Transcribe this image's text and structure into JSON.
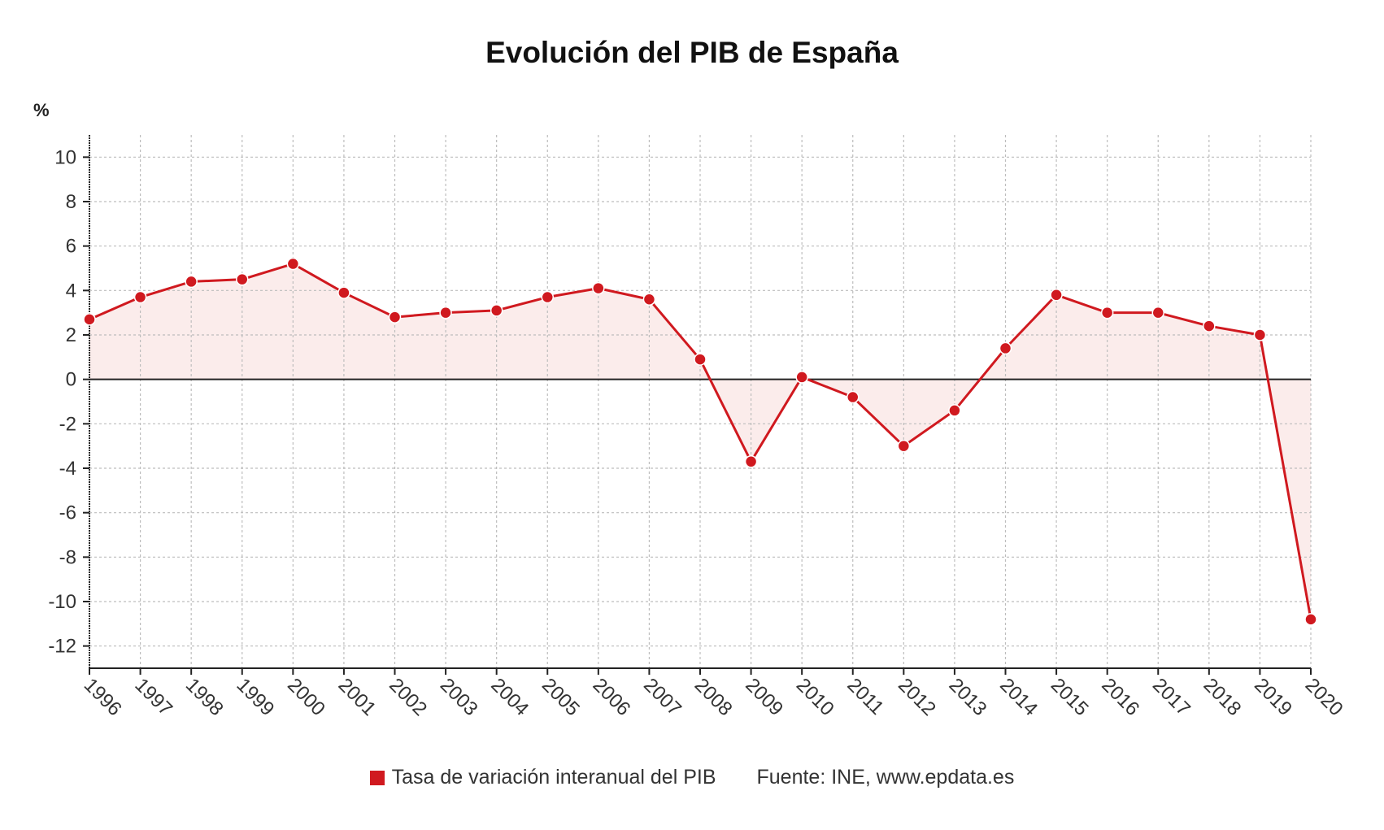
{
  "chart_data": {
    "type": "line",
    "title": "Evolución del PIB de España",
    "ylabel": "%",
    "xlabel": "",
    "ylim": [
      -13,
      11
    ],
    "yticks": [
      10,
      8,
      6,
      4,
      2,
      0,
      -2,
      -4,
      -6,
      -8,
      -10,
      -12
    ],
    "grid": true,
    "categories": [
      "1996",
      "1997",
      "1998",
      "1999",
      "2000",
      "2001",
      "2002",
      "2003",
      "2004",
      "2005",
      "2006",
      "2007",
      "2008",
      "2009",
      "2010",
      "2011",
      "2012",
      "2013",
      "2014",
      "2015",
      "2016",
      "2017",
      "2018",
      "2019",
      "2020"
    ],
    "series": [
      {
        "name": "Tasa de variación interanual del PIB",
        "values": [
          2.7,
          3.7,
          4.4,
          4.5,
          5.2,
          3.9,
          2.8,
          3.0,
          3.1,
          3.7,
          4.1,
          3.6,
          0.9,
          -3.7,
          0.1,
          -0.8,
          -3.0,
          -1.4,
          1.4,
          3.8,
          3.0,
          3.0,
          2.4,
          2.0,
          -10.8
        ],
        "color": "#d0191f"
      }
    ],
    "legend": {
      "position": "bottom",
      "source": "Fuente: INE, www.epdata.es"
    }
  },
  "colors": {
    "line": "#d0191f",
    "area": "#fbeceb",
    "grid": "#bdbdbd",
    "axis": "#222222"
  }
}
